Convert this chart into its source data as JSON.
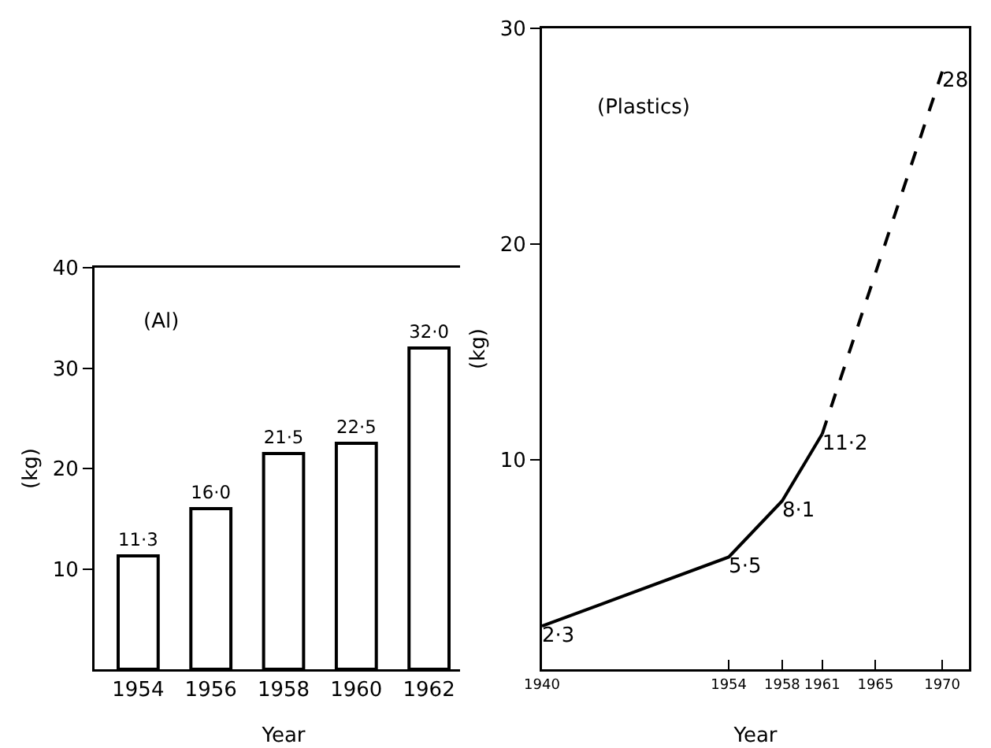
{
  "chart_data": [
    {
      "type": "bar",
      "categories": [
        "1954",
        "1956",
        "1958",
        "1960",
        "1962"
      ],
      "values": [
        11.3,
        16.0,
        21.5,
        22.5,
        32.0
      ],
      "value_labels": [
        "11·3",
        "16·0",
        "21·5",
        "22·5",
        "32·0"
      ],
      "color": "#ffffff",
      "ylim": [
        0,
        40
      ],
      "yticks": [
        10,
        20,
        30,
        40
      ],
      "xlabel": "Year",
      "ylabel": "(kg)",
      "annotations": [
        "(Al)"
      ]
    },
    {
      "type": "line",
      "xlim": [
        1940,
        1972
      ],
      "xticks": [
        1940,
        1954,
        1958,
        1961,
        1965,
        1970
      ],
      "ylim": [
        0.3,
        30
      ],
      "yticks": [
        10,
        20,
        30
      ],
      "xlabel": "Year",
      "ylabel": "(kg)",
      "annotations": [
        "(Plastics)"
      ],
      "marker": "none",
      "series": [
        {
          "color": "#000000",
          "line_style": "solid",
          "x": [
            1940,
            1954,
            1958,
            1961
          ],
          "values": [
            2.3,
            5.5,
            8.1,
            11.2
          ],
          "value_labels": [
            "2·3",
            "5·5",
            "8·1",
            "11·2"
          ]
        },
        {
          "color": "#000000",
          "line_style": "dashed",
          "x": [
            1961,
            1970
          ],
          "values": [
            11.2,
            28
          ],
          "value_labels": [
            null,
            "28"
          ]
        }
      ]
    }
  ]
}
